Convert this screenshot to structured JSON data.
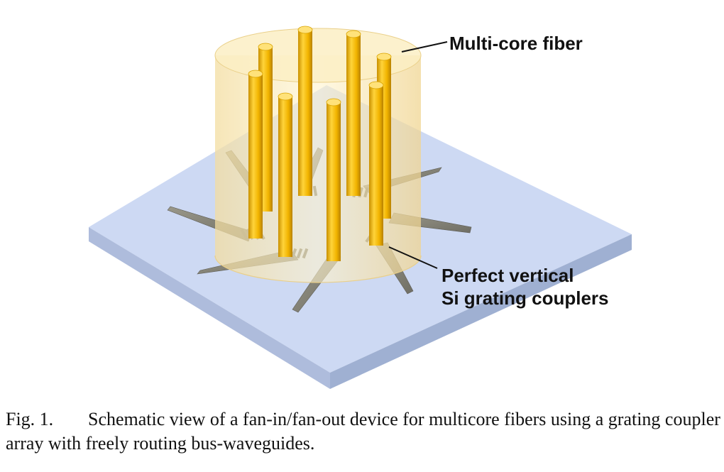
{
  "figure": {
    "labels": {
      "multicore_fiber": "Multi-core fiber",
      "grating_couplers_line1": "Perfect vertical",
      "grating_couplers_line2": "Si grating couplers"
    },
    "colors": {
      "substrate_top": "#cdd9f2",
      "substrate_side": "#a9b8d8",
      "fiber_cladding": "#f6e3a8",
      "fiber_core": "#f2b800",
      "waveguide": "#8a8a7e"
    }
  },
  "caption": {
    "number": "Fig. 1.",
    "text": "Schematic view of a fan-in/fan-out device for multicore fibers using a grating coupler array with freely routing bus-waveguides."
  }
}
